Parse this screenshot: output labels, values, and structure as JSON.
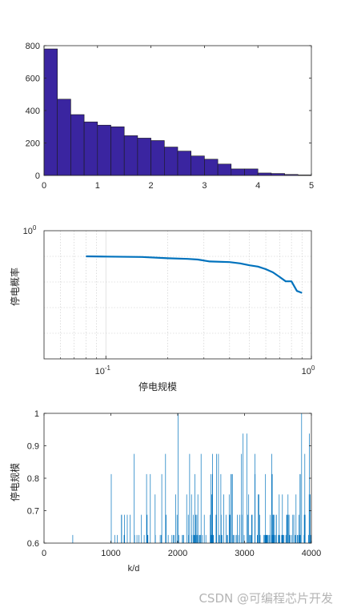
{
  "colors": {
    "bar_fill": "#3a25a0",
    "line": "#0072bd",
    "axis": "#262626",
    "grid": "#c8c8c8"
  },
  "watermark": "CSDN @可编程芯片开发",
  "chart_data": [
    {
      "type": "bar",
      "title": "",
      "xlabel": "",
      "ylabel": "",
      "xlim": [
        0,
        5
      ],
      "ylim": [
        0,
        800
      ],
      "xticks": [
        "0",
        "1",
        "2",
        "3",
        "4",
        "5"
      ],
      "yticks": [
        "0",
        "200",
        "400",
        "600",
        "800"
      ],
      "bin_width": 0.25,
      "bin_edges_start": [
        0,
        0.25,
        0.5,
        0.75,
        1.0,
        1.25,
        1.5,
        1.75,
        2.0,
        2.25,
        2.5,
        2.75,
        3.0,
        3.25,
        3.5,
        3.75,
        4.0,
        4.25,
        4.5,
        4.75
      ],
      "values": [
        780,
        470,
        375,
        330,
        310,
        300,
        245,
        230,
        215,
        175,
        150,
        120,
        100,
        70,
        40,
        40,
        15,
        12,
        6,
        3
      ],
      "grid": false
    },
    {
      "type": "line",
      "title": "",
      "xlabel": "停电规模",
      "ylabel": "停电概率",
      "xscale": "log",
      "xlim": [
        0.05,
        1.0
      ],
      "ylim": [
        0,
        1
      ],
      "xticks": [
        "10^-1",
        "10^0"
      ],
      "yticks": [
        "10^0"
      ],
      "grid": true,
      "x": [
        0.08,
        0.1,
        0.15,
        0.2,
        0.25,
        0.28,
        0.32,
        0.4,
        0.45,
        0.5,
        0.55,
        0.6,
        0.65,
        0.7,
        0.75,
        0.8,
        0.85,
        0.9
      ],
      "y": [
        0.8,
        0.798,
        0.795,
        0.785,
        0.78,
        0.775,
        0.76,
        0.755,
        0.745,
        0.73,
        0.72,
        0.7,
        0.675,
        0.64,
        0.605,
        0.605,
        0.53,
        0.515
      ]
    },
    {
      "type": "bar",
      "subtype": "stem",
      "title": "",
      "xlabel": "k/d",
      "ylabel": "停电规模",
      "xlim": [
        0,
        4000
      ],
      "ylim": [
        0.6,
        1.0
      ],
      "xticks": [
        "0",
        "1000",
        "2000",
        "3000",
        "4000"
      ],
      "yticks": [
        "0.6",
        "0.7",
        "0.8",
        "0.9",
        "1"
      ],
      "grid": false,
      "baseline": 0.6,
      "level_set": [
        0.625,
        0.6875,
        0.75,
        0.8125,
        0.875,
        0.9375,
        1.0
      ],
      "samples": 4000,
      "first_event": 430
    }
  ]
}
